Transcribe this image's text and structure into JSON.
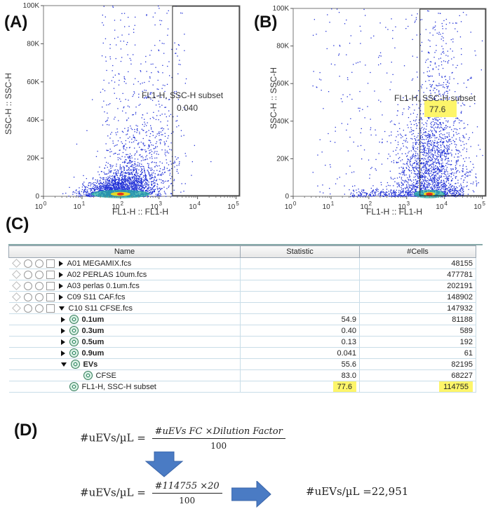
{
  "labels": {
    "a": "(A)",
    "b": "(B)",
    "c": "(C)",
    "d": "(D)"
  },
  "plots": [
    {
      "id": "A",
      "y_axis_title": "SSC-H :: SSC-H",
      "x_axis_title": "FL1-H :: FL1-H",
      "y_ticks": [
        "0",
        "20K",
        "40K",
        "60K",
        "80K",
        "100K"
      ],
      "x_ticks": [
        "10",
        "10",
        "10",
        "10",
        "10",
        "10"
      ],
      "x_exps": [
        "0",
        "1",
        "2",
        "3",
        "4",
        "5"
      ],
      "gate_name": "FL1-H, SSC-H subset",
      "gate_value": "0.040",
      "gate_from_decade": 3.35
    },
    {
      "id": "B",
      "y_axis_title": "SSC-H :: SSC-H",
      "x_axis_title": "FL1-H :: FL1-H",
      "y_ticks": [
        "0",
        "20K",
        "40K",
        "60K",
        "80K",
        "100K"
      ],
      "x_ticks": [
        "10",
        "10",
        "10",
        "10",
        "10",
        "10"
      ],
      "x_exps": [
        "0",
        "1",
        "2",
        "3",
        "4",
        "5"
      ],
      "gate_name": "FL1-H, SSC-H subset",
      "gate_value": "77.6",
      "gate_from_decade": 3.35
    }
  ],
  "table": {
    "headers": {
      "name": "Name",
      "statistic": "Statistic",
      "cells": "#Cells"
    },
    "rows": [
      {
        "name": "A01 MEGAMIX.fcs",
        "statistic": "",
        "cells": "48155"
      },
      {
        "name": "A02 PERLAS 10um.fcs",
        "statistic": "",
        "cells": "477781"
      },
      {
        "name": "A03 perlas 0.1um.fcs",
        "statistic": "",
        "cells": "202191"
      },
      {
        "name": "C09 S11 CAF.fcs",
        "statistic": "",
        "cells": "148902"
      },
      {
        "name": "C10 S11 CFSE.fcs",
        "statistic": "",
        "cells": "147932"
      },
      {
        "name": "0.1um",
        "statistic": "54.9",
        "cells": "81188"
      },
      {
        "name": "0.3um",
        "statistic": "0.40",
        "cells": "589"
      },
      {
        "name": "0.5um",
        "statistic": "0.13",
        "cells": "192"
      },
      {
        "name": "0.9um",
        "statistic": "0.041",
        "cells": "61"
      },
      {
        "name": "EVs",
        "statistic": "55.6",
        "cells": "82195"
      },
      {
        "name": "CFSE",
        "statistic": "83.0",
        "cells": "68227"
      },
      {
        "name": "FL1-H, SSC-H subset",
        "statistic": "77.6",
        "cells": "114755"
      }
    ]
  },
  "formula": {
    "lhs": "#uEVs/µL =",
    "numerator": "#uEVs FC ×Dilution Factor",
    "denominator": "100",
    "lhs2": "#uEVs/µL =",
    "numerator2": "#114755 ×20",
    "denominator2": "100",
    "result": "#uEVs/µL =22,951"
  },
  "colors": {
    "accent_arrow": "#4a7bc4",
    "highlight": "#fdf56a",
    "dots": "#1f2fd6"
  }
}
